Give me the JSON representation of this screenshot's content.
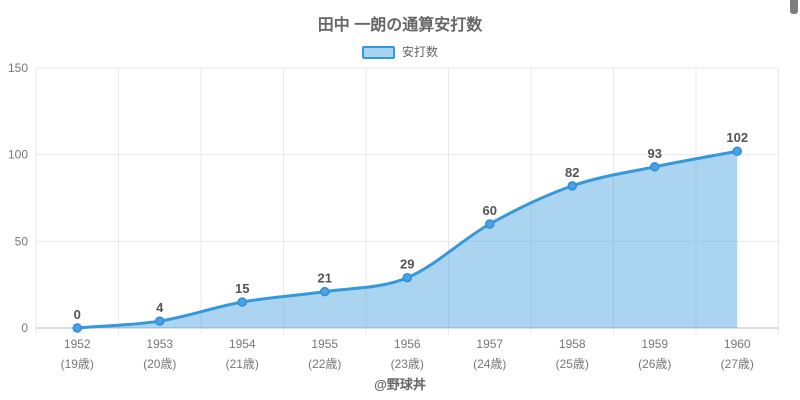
{
  "page": {
    "watermark": "@野球丼"
  },
  "colors": {
    "line": "#3498db",
    "fill_opacity": 0.42,
    "point_fill": "#4aa2e2",
    "point_stroke": "#2d8fd8",
    "grid": "#e9e9e9",
    "axis": "#c2c2c2",
    "tick_text": "#777777",
    "data_label": "#545454",
    "title_text": "#666666",
    "legend_text": "#666666",
    "swatch_fill": "#a9d4f1"
  },
  "chart_data": {
    "type": "area",
    "title": "田中 一朗の通算安打数",
    "series": [
      {
        "name": "安打数",
        "values": [
          0,
          4,
          15,
          21,
          29,
          60,
          82,
          93,
          102
        ]
      }
    ],
    "categories": [
      "1952",
      "1953",
      "1954",
      "1955",
      "1956",
      "1957",
      "1958",
      "1959",
      "1960"
    ],
    "category_sublabels": [
      "(19歳)",
      "(20歳)",
      "(21歳)",
      "(22歳)",
      "(23歳)",
      "(24歳)",
      "(25歳)",
      "(26歳)",
      "(27歳)"
    ],
    "xlabel": "",
    "ylabel": "",
    "ylim": [
      0,
      150
    ],
    "yticks": [
      0,
      50,
      100,
      150
    ],
    "grid": true,
    "legend_position": "top",
    "data_labels": true,
    "smooth": true
  }
}
